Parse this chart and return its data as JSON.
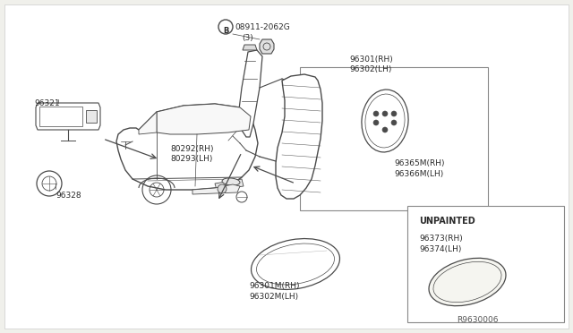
{
  "bg": "#f0f0eb",
  "white": "#ffffff",
  "lc": "#4a4a4a",
  "tc": "#2a2a2a",
  "border": "#999999",
  "diagram_no": "R9630006",
  "parts": {
    "96321": "96321",
    "96328": "96328",
    "bolt": "B08911-2062G\n   (3)",
    "80292": "80292(RH)\n80293(LH)",
    "96301_box": "96301(RH)\n96302(LH)",
    "96365": "96365M(RH)\n96366M(LH)",
    "96301M": "96301M(RH)\n96302M(LH)",
    "unpainted": "UNPAINTED",
    "96373": "96373(RH)\n96374(LH)"
  }
}
